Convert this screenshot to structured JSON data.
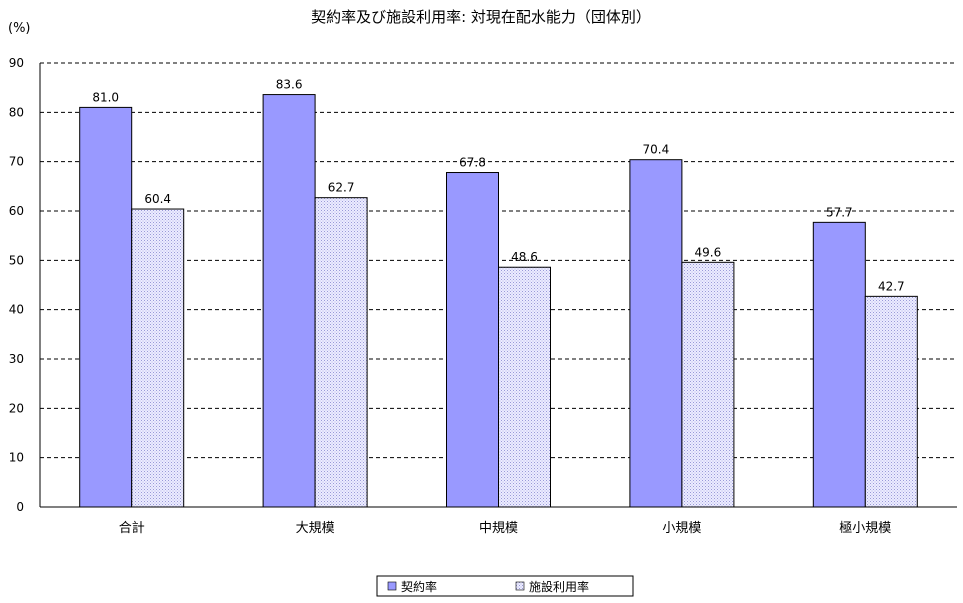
{
  "chart_data": {
    "type": "bar",
    "title": "契約率及び施設利用率: 対現在配水能力（団体別）",
    "ylabel": "(%)",
    "ylim": [
      0,
      90
    ],
    "yticks": [
      0,
      10,
      20,
      30,
      40,
      50,
      60,
      70,
      80,
      90
    ],
    "categories": [
      "合計",
      "大規模",
      "中規模",
      "小規模",
      "極小規模"
    ],
    "series": [
      {
        "name": "契約率",
        "values": [
          81.0,
          83.6,
          67.8,
          70.4,
          57.7
        ],
        "color": "#9999ff"
      },
      {
        "name": "施設利用率",
        "values": [
          60.4,
          62.7,
          48.6,
          49.6,
          42.7
        ],
        "color": "#ccccff"
      }
    ],
    "grid": "dashed horizontal",
    "legend_position": "bottom"
  }
}
